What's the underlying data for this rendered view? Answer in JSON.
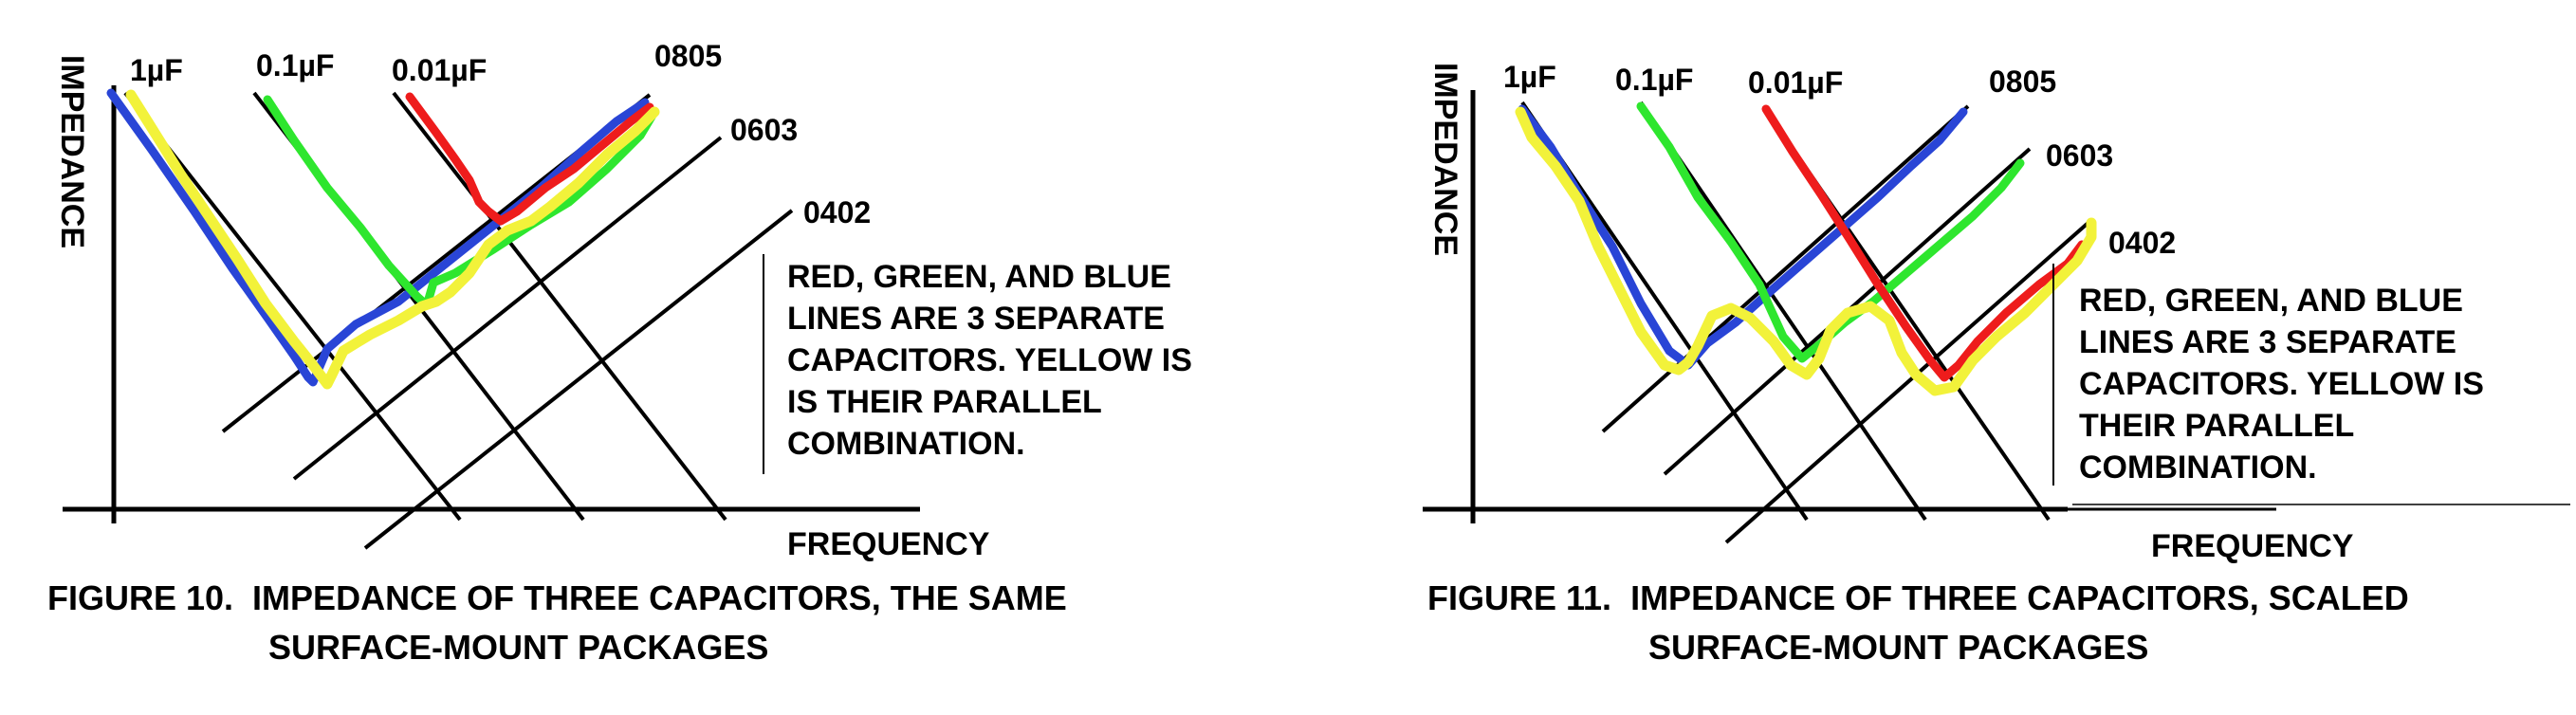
{
  "colors": {
    "background": "#ffffff",
    "ink": "#000000",
    "blue": "#2945d6",
    "green": "#2ee62e",
    "red": "#ee1c1c",
    "yellow": "#f2f23a"
  },
  "figures": [
    {
      "id": "figure-10",
      "y_axis_label": "IMPEDANCE",
      "x_axis_label": "FREQUENCY",
      "capacitor_labels": [
        "1µF",
        "0.1µF",
        "0.01µF"
      ],
      "package_labels": [
        "0805",
        "0603",
        "0402"
      ],
      "note_lines": [
        "RED, GREEN, AND BLUE",
        "LINES ARE 3 SEPARATE",
        "CAPACITORS. YELLOW IS",
        "IS THEIR PARALLEL",
        "COMBINATION."
      ],
      "caption_line1": "FIGURE 10.  IMPEDANCE OF THREE CAPACITORS, THE SAME",
      "caption_line2": "SURFACE-MOUNT PACKAGES"
    },
    {
      "id": "figure-11",
      "y_axis_label": "IMPEDANCE",
      "x_axis_label": "FREQUENCY",
      "capacitor_labels": [
        "1µF",
        "0.1µF",
        "0.01µF"
      ],
      "package_labels": [
        "0805",
        "0603",
        "0402"
      ],
      "note_lines": [
        "RED, GREEN, AND BLUE",
        "LINES ARE 3 SEPARATE",
        "CAPACITORS. YELLOW IS",
        "THEIR PARALLEL",
        "COMBINATION."
      ],
      "caption_line1": "FIGURE 11.  IMPEDANCE OF THREE CAPACITORS, SCALED",
      "caption_line2": "SURFACE-MOUNT PACKAGES"
    }
  ]
}
